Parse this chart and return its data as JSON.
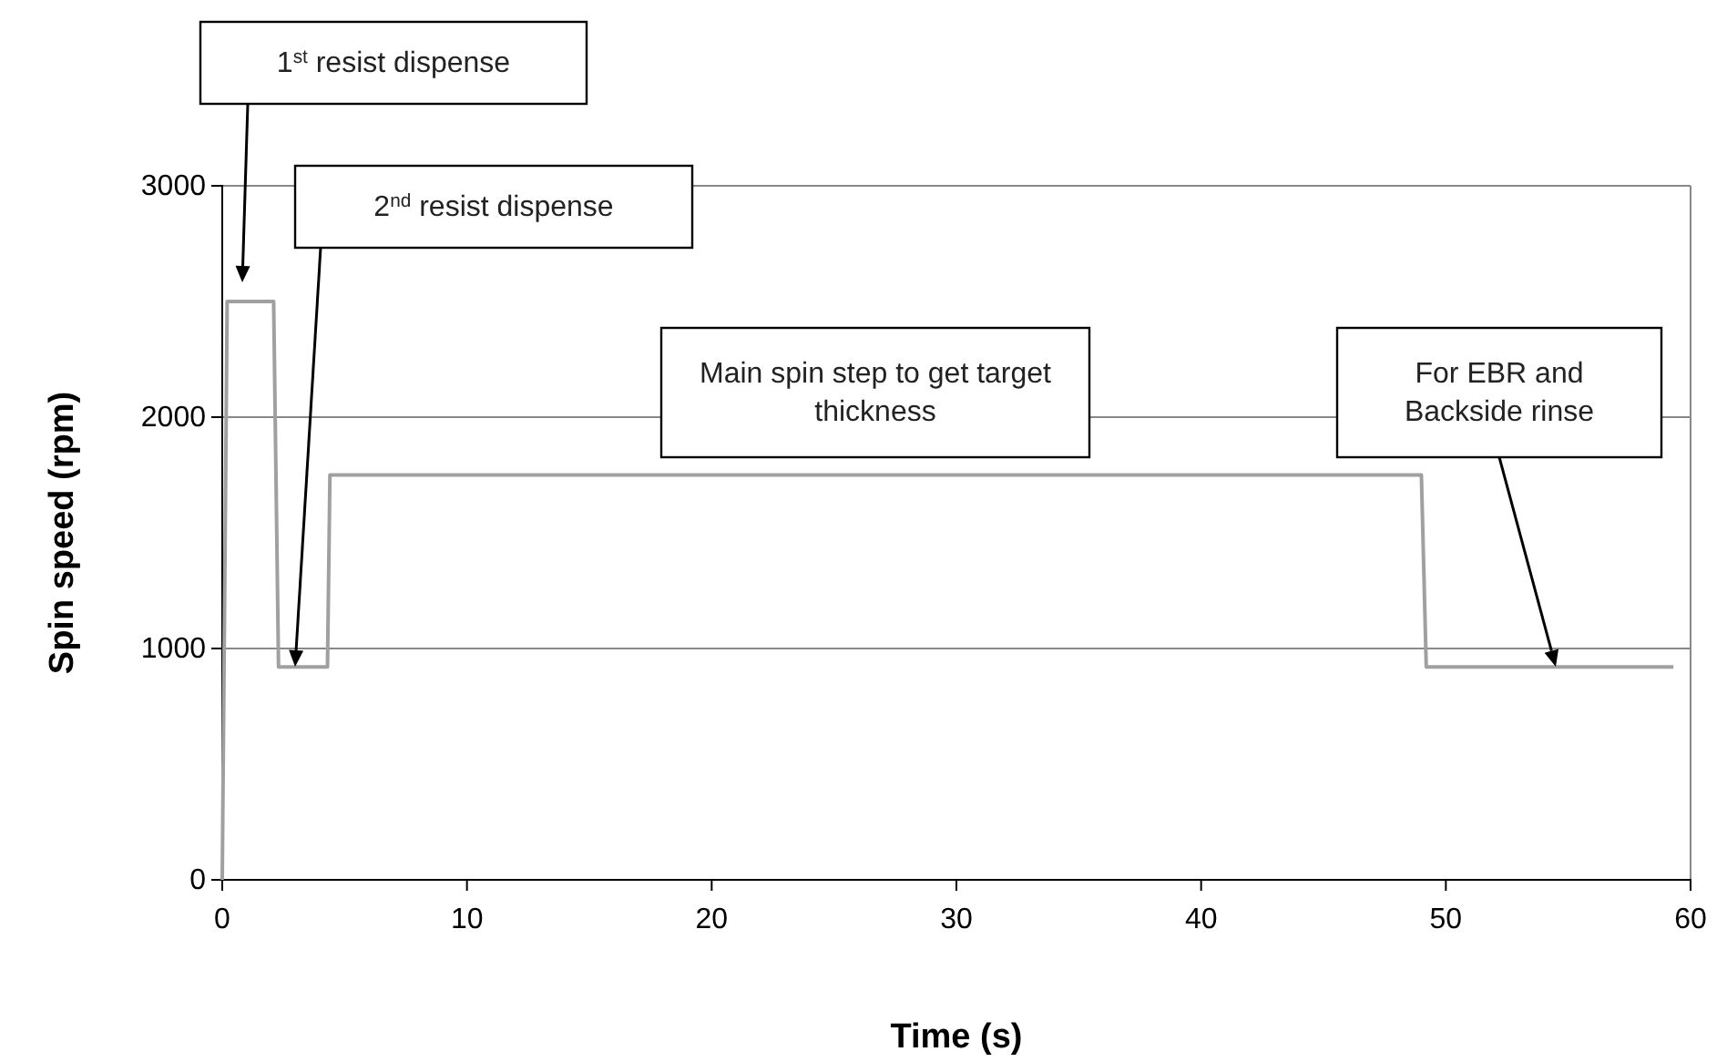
{
  "chart_data": {
    "type": "line",
    "xlabel": "Time (s)",
    "ylabel": "Spin speed (rpm)",
    "x": [
      0,
      0.2,
      2.1,
      2.3,
      4.3,
      4.4,
      49.0,
      49.2,
      59.3
    ],
    "series": [
      {
        "color": "#a0a0a0",
        "values": [
          0,
          2500,
          2500,
          920,
          920,
          1750,
          1750,
          920,
          920
        ]
      }
    ],
    "xlim": [
      0,
      60
    ],
    "xticks": [
      0,
      10,
      20,
      30,
      40,
      50,
      60
    ],
    "ylim": [
      0,
      3000
    ],
    "yticks": [
      0,
      1000,
      2000,
      3000
    ],
    "grid": "y",
    "marker": "none",
    "line_style": "solid",
    "annotations": [
      "1$^{st}$ resist dispense",
      "2$^{nd}$ resist dispense",
      "Main spin step to get target thickness",
      "For EBR and Backside rinse"
    ]
  }
}
